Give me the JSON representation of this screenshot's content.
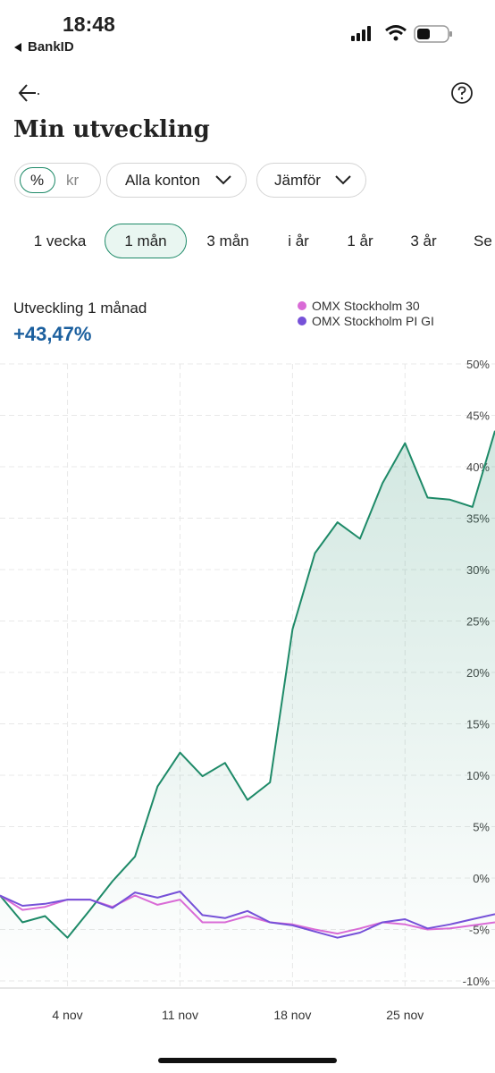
{
  "status_bar": {
    "time": "18:48",
    "back_app": "BankID"
  },
  "header": {
    "title": "Min utveckling"
  },
  "filters": {
    "unit_toggle": [
      "%",
      "kr"
    ],
    "account": "Alla konton",
    "compare": "Jämför"
  },
  "periods": {
    "options": [
      "1 vecka",
      "1 mån",
      "3 mån",
      "i år",
      "1 år",
      "3 år",
      "Se"
    ],
    "selected": 1
  },
  "summary": {
    "label": "Utveckling 1 månad",
    "value": "+43,47%"
  },
  "chart_data": {
    "type": "line",
    "x": [
      0,
      1,
      2,
      3,
      4,
      5,
      6,
      7,
      8,
      9,
      10,
      11,
      12,
      13,
      14,
      15,
      16,
      17,
      18,
      19,
      20,
      21,
      22
    ],
    "series": [
      {
        "color": "#1e8a68",
        "values": [
          -1.7,
          -4.3,
          -3.7,
          -5.8,
          -3.1,
          -0.3,
          2.1,
          8.9,
          12.2,
          9.9,
          11.2,
          7.6,
          9.3,
          24.2,
          31.6,
          34.6,
          33.0,
          38.4,
          42.3,
          37.0,
          36.8,
          36.1,
          43.5
        ]
      },
      {
        "name": "OMX Stockholm 30",
        "color": "#d96bd6",
        "values": [
          -1.7,
          -3.1,
          -2.8,
          -2.1,
          -2.1,
          -2.8,
          -1.7,
          -2.6,
          -2.1,
          -4.3,
          -4.3,
          -3.7,
          -4.3,
          -4.5,
          -5.0,
          -5.4,
          -4.9,
          -4.3,
          -4.5,
          -5.0,
          -4.9,
          -4.6,
          -4.3
        ]
      },
      {
        "name": "OMX Stockholm PI GI",
        "color": "#7651d8",
        "values": [
          -1.7,
          -2.7,
          -2.5,
          -2.1,
          -2.1,
          -2.9,
          -1.4,
          -1.9,
          -1.3,
          -3.6,
          -3.9,
          -3.2,
          -4.3,
          -4.6,
          -5.2,
          -5.8,
          -5.3,
          -4.3,
          -4.0,
          -4.9,
          -4.5,
          -4.0,
          -3.5
        ]
      }
    ],
    "xlim": [
      0,
      22
    ],
    "xticks": [
      {
        "value": 3,
        "label": "4 nov"
      },
      {
        "value": 8,
        "label": "11 nov"
      },
      {
        "value": 13,
        "label": "18 nov"
      },
      {
        "value": 18,
        "label": "25 nov"
      }
    ],
    "ylim": [
      -10,
      50
    ],
    "yticks": [
      {
        "value": 50,
        "label": "50%"
      },
      {
        "value": 45,
        "label": "45%"
      },
      {
        "value": 40,
        "label": "40%"
      },
      {
        "value": 35,
        "label": "35%"
      },
      {
        "value": 30,
        "label": "30%"
      },
      {
        "value": 25,
        "label": "25%"
      },
      {
        "value": 20,
        "label": "20%"
      },
      {
        "value": 15,
        "label": "15%"
      },
      {
        "value": 10,
        "label": "10%"
      },
      {
        "value": 5,
        "label": "5%"
      },
      {
        "value": 0,
        "label": "0%"
      },
      {
        "value": -5,
        "label": "-5%"
      },
      {
        "value": -10,
        "label": "-10%"
      }
    ],
    "grid": true
  }
}
